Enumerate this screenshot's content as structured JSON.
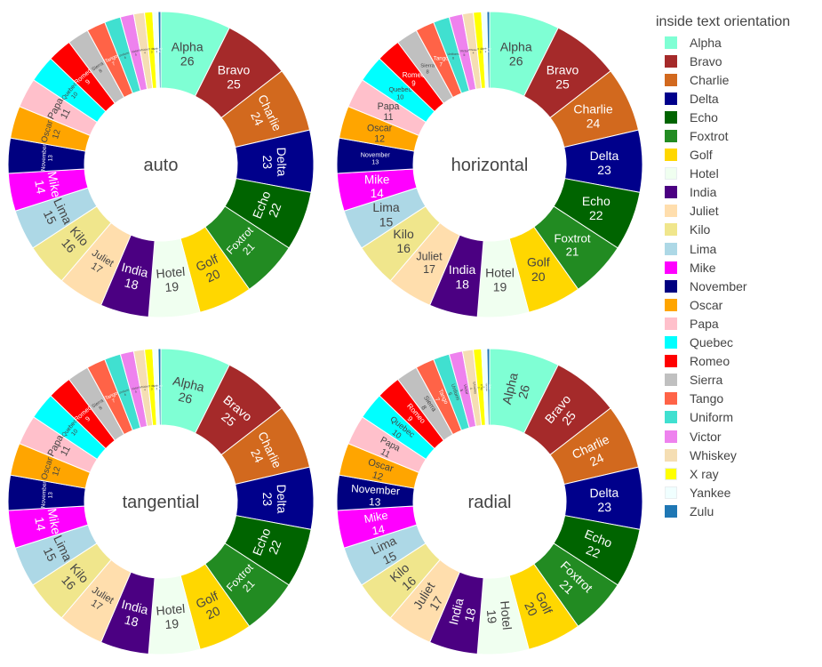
{
  "chart_data": {
    "type": "pie",
    "hole": 0.5,
    "legend_title": "inside text orientation",
    "legend_position": "right",
    "labels": [
      "Alpha",
      "Bravo",
      "Charlie",
      "Delta",
      "Echo",
      "Foxtrot",
      "Golf",
      "Hotel",
      "India",
      "Juliet",
      "Kilo",
      "Lima",
      "Mike",
      "November",
      "Oscar",
      "Papa",
      "Quebec",
      "Romeo",
      "Sierra",
      "Tango",
      "Uniform",
      "Victor",
      "Whiskey",
      "X ray",
      "Yankee",
      "Zulu"
    ],
    "values": [
      26,
      25,
      24,
      23,
      22,
      21,
      20,
      19,
      18,
      17,
      16,
      15,
      14,
      13,
      12,
      11,
      10,
      9,
      8,
      7,
      6,
      5,
      4,
      3,
      2,
      1
    ],
    "colors": [
      "#7fffd4",
      "#a52a2a",
      "#d2691e",
      "#00008b",
      "#006400",
      "#228b22",
      "#ffd700",
      "#f0fff0",
      "#4b0082",
      "#ffdead",
      "#f0e68c",
      "#add8e6",
      "#ff00ff",
      "#000080",
      "#ffa500",
      "#ffc0cb",
      "#00ffff",
      "#ff0000",
      "#c0c0c0",
      "#ff6347",
      "#40e0d0",
      "#ee82ee",
      "#f5deb3",
      "#ffff00",
      "#f0ffff",
      "#1f77b4"
    ],
    "subplots": [
      {
        "title": "auto",
        "insidetextorientation": "auto"
      },
      {
        "title": "horizontal",
        "insidetextorientation": "horizontal"
      },
      {
        "title": "tangential",
        "insidetextorientation": "tangential"
      },
      {
        "title": "radial",
        "insidetextorientation": "radial"
      }
    ]
  }
}
